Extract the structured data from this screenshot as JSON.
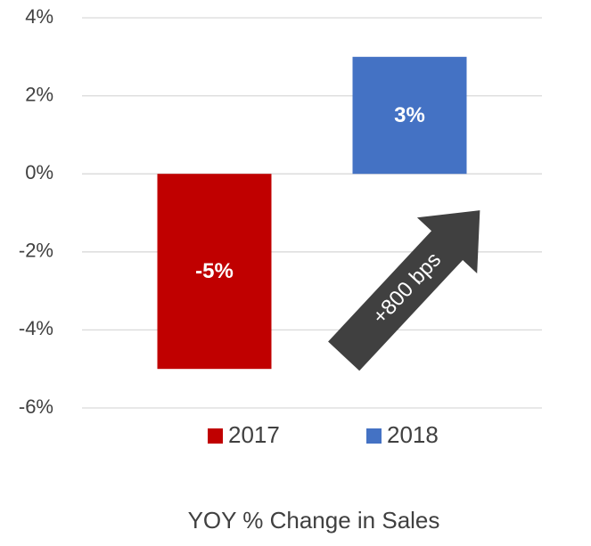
{
  "chart_data": {
    "type": "bar",
    "title": "YOY % Change in Sales",
    "categories": [
      null
    ],
    "series": [
      {
        "name": "2017",
        "color": "#c00000",
        "values": [
          -5
        ],
        "value_labels": [
          "-5%"
        ]
      },
      {
        "name": "2018",
        "color": "#4472c4",
        "values": [
          3
        ],
        "value_labels": [
          "3%"
        ]
      }
    ],
    "ylim": [
      -6,
      4
    ],
    "yticks": [
      {
        "value": -6,
        "label": "-6%"
      },
      {
        "value": -4,
        "label": "-4%"
      },
      {
        "value": -2,
        "label": "-2%"
      },
      {
        "value": 0,
        "label": "0%"
      },
      {
        "value": 2,
        "label": "2%"
      },
      {
        "value": 4,
        "label": "4%"
      }
    ],
    "grid": true,
    "legend": "bottom",
    "annotation": "+800 bps"
  }
}
